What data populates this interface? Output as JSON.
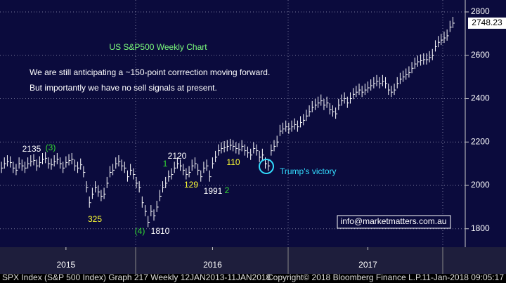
{
  "chart_data": {
    "type": "ohlc",
    "title": "US S&P500 Weekly Chart",
    "subtitle_lines": [
      "We are still anticipating a ~150-point corrrection moving forward.",
      "But importantly we have no sell signals at present."
    ],
    "color": "#ffffff",
    "title_color": "#7CFC7C",
    "values": [
      2080,
      2100,
      2110,
      2105,
      2080,
      2070,
      2100,
      2090,
      2080,
      2100,
      2110,
      2115,
      2090,
      2105,
      2120,
      2125,
      2100,
      2095,
      2110,
      2120,
      2100,
      2080,
      2105,
      2115,
      2120,
      2090,
      2080,
      2095,
      2060,
      1990,
      1920,
      1960,
      1990,
      1970,
      1950,
      1960,
      2010,
      2060,
      2070,
      2100,
      2110,
      2090,
      2080,
      2040,
      2070,
      2050,
      2010,
      1990,
      1920,
      1880,
      1830,
      1880,
      1860,
      1900,
      1950,
      1990,
      2010,
      2040,
      2050,
      2080,
      2100,
      2090,
      2070,
      2050,
      2060,
      2090,
      2100,
      2070,
      2040,
      2080,
      2090,
      2040,
      2100,
      2130,
      2160,
      2170,
      2175,
      2180,
      2185,
      2180,
      2170,
      2165,
      2180,
      2160,
      2150,
      2140,
      2170,
      2160,
      2130,
      2140,
      2100,
      2090,
      2160,
      2180,
      2200,
      2250,
      2260,
      2270,
      2260,
      2270,
      2280,
      2270,
      2290,
      2300,
      2320,
      2340,
      2360,
      2370,
      2380,
      2390,
      2370,
      2380,
      2350,
      2340,
      2330,
      2370,
      2390,
      2400,
      2380,
      2400,
      2420,
      2430,
      2440,
      2430,
      2440,
      2450,
      2460,
      2470,
      2480,
      2470,
      2480,
      2470,
      2440,
      2430,
      2440,
      2470,
      2490,
      2500,
      2510,
      2520,
      2540,
      2560,
      2570,
      2575,
      2580,
      2580,
      2590,
      2600,
      2640,
      2660,
      2670,
      2680,
      2690,
      2730,
      2748.23
    ],
    "xlim": [
      -0.5,
      158.2
    ],
    "xticks": [
      {
        "value": 22,
        "label": "2015"
      },
      {
        "value": 72,
        "label": "2016"
      },
      {
        "value": 125,
        "label": "2017"
      }
    ],
    "ylim": [
      1715,
      2855
    ],
    "yticks": [
      1800,
      2000,
      2200,
      2400,
      2600,
      2800
    ],
    "grid": true,
    "annotations": [
      {
        "text": "2135",
        "color": "#ffffff"
      },
      {
        "text": "(3)",
        "color": "#33dd33"
      },
      {
        "text": "325",
        "color": "#ffff33"
      },
      {
        "text": "(4)",
        "color": "#33dd33"
      },
      {
        "text": "1810",
        "color": "#ffffff"
      },
      {
        "text": "2120",
        "color": "#ffffff"
      },
      {
        "text": "1",
        "color": "#33dd33"
      },
      {
        "text": "129",
        "color": "#ffff33"
      },
      {
        "text": "1991",
        "color": "#ffffff"
      },
      {
        "text": "2",
        "color": "#33dd33"
      },
      {
        "text": "110",
        "color": "#ffff33"
      },
      {
        "text": "Trump's victory",
        "color": "#33ddff"
      }
    ],
    "watermark": "info@marketmatters.com.au",
    "footer": [
      "SPX Index (S&P 500 Index) Graph 217  Weekly 12JAN2013-11JAN2018",
      "Copyright© 2018 Bloomberg Finance L.P.",
      "11-Jan-2018 09:05:17"
    ]
  }
}
